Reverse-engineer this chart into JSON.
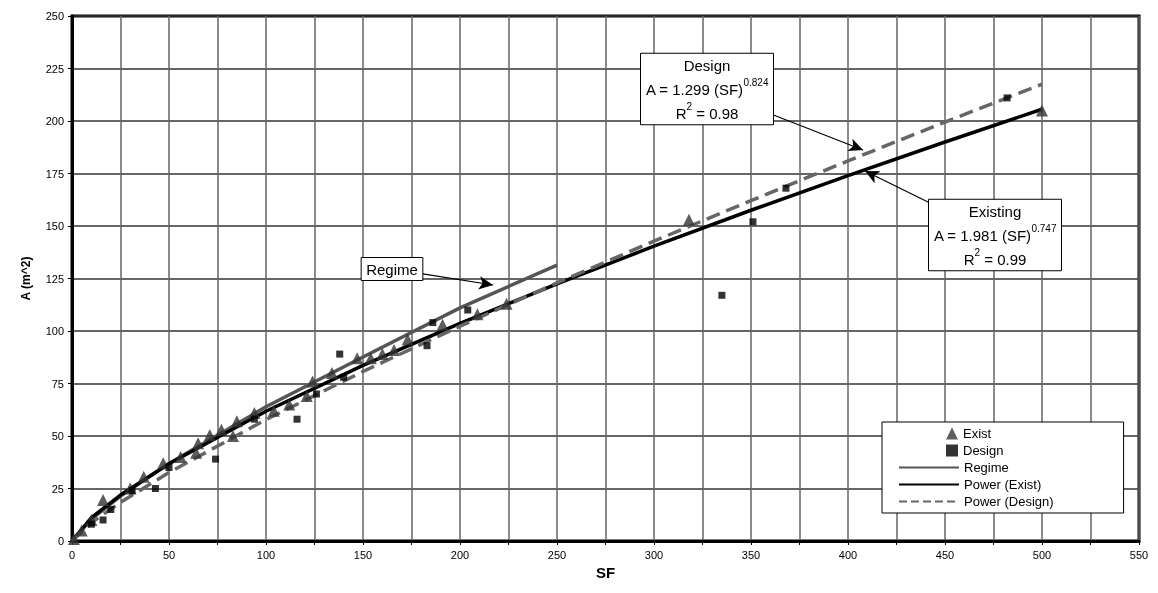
{
  "chart_data": {
    "type": "scatter",
    "xlabel": "SF",
    "ylabel": "A (m^2)",
    "xlim": [
      0,
      550
    ],
    "xticks": [
      0,
      {
        "value": 25,
        "label": null
      },
      50,
      {
        "value": 75,
        "label": null
      },
      100,
      {
        "value": 125,
        "label": null
      },
      150,
      {
        "value": 175,
        "label": null
      },
      200,
      {
        "value": 225,
        "label": null
      },
      250,
      {
        "value": 275,
        "label": null
      },
      300,
      {
        "value": 325,
        "label": null
      },
      350,
      {
        "value": 375,
        "label": null
      },
      400,
      {
        "value": 425,
        "label": null
      },
      450,
      {
        "value": 475,
        "label": null
      },
      500,
      {
        "value": 525,
        "label": null
      },
      550
    ],
    "ylim": [
      0,
      250
    ],
    "yticks": [
      0,
      25,
      50,
      75,
      100,
      125,
      150,
      175,
      200,
      225,
      250
    ],
    "grid": true,
    "legend": "bottom right",
    "series": [
      {
        "name": "Exist",
        "marker": "triangle",
        "color": "#333333",
        "x": [
          1,
          5,
          10,
          16,
          20,
          30,
          37,
          47,
          56,
          64,
          65,
          71,
          77,
          83,
          85,
          94,
          104,
          112,
          121,
          124,
          134,
          147,
          154,
          160,
          166,
          173,
          191,
          209,
          224,
          318,
          500
        ],
        "values": [
          1,
          5,
          10,
          19.5,
          null,
          25,
          30.6,
          37,
          40,
          42,
          46.5,
          50.5,
          53,
          50,
          57,
          61,
          62,
          65,
          69,
          76,
          80,
          87,
          87,
          89,
          91,
          96,
          103,
          108,
          113,
          153,
          205
        ]
      },
      {
        "name": "Design",
        "marker": "square",
        "color": "#000000",
        "x": [
          10,
          16,
          20,
          31,
          43,
          50,
          74,
          94,
          116,
          126,
          138,
          140,
          183,
          186,
          204,
          335,
          351,
          368,
          482
        ],
        "values": [
          8,
          10,
          15,
          24,
          25,
          35,
          39,
          58,
          58,
          70,
          89,
          78,
          93,
          104,
          110,
          117,
          152,
          168,
          211
        ]
      },
      {
        "name": "Regime",
        "type": "line",
        "marker": "none",
        "line_style": "solid",
        "color": "#555555",
        "x": [
          0,
          10,
          25,
          50,
          100,
          150,
          200,
          250
        ],
        "values": [
          0,
          10.4,
          21.4,
          36.9,
          63.9,
          87.6,
          111,
          131.4
        ]
      },
      {
        "name": "Power (Exist)",
        "type": "line",
        "marker": "none",
        "line_style": "solid",
        "color": "#000000",
        "x": [
          0,
          10,
          25,
          50,
          100,
          150,
          200,
          250,
          300,
          350,
          400,
          450,
          500
        ],
        "values": [
          0,
          11.1,
          21.9,
          36.8,
          61.8,
          83.6,
          103.6,
          122.4,
          140.4,
          157.5,
          174,
          190,
          205.6
        ]
      },
      {
        "name": "Power (Design)",
        "type": "line",
        "marker": "none",
        "line_style": "dashed",
        "color": "#666666",
        "x": [
          0,
          10,
          25,
          50,
          100,
          150,
          200,
          250,
          300,
          350,
          400,
          450,
          500
        ],
        "values": [
          0,
          8.7,
          18.4,
          32.6,
          57.8,
          80.7,
          102.3,
          122.9,
          142.8,
          162.1,
          181,
          199.5,
          217.5
        ]
      }
    ],
    "annotations": [
      "Regime",
      "Design\nA = 1.299 (SF)$^{0.824}$\nR$^{2}$ = 0.98",
      "Existing\nA = 1.981 (SF)$^{0.747}$\nR$^{2}$ = 0.99"
    ]
  }
}
